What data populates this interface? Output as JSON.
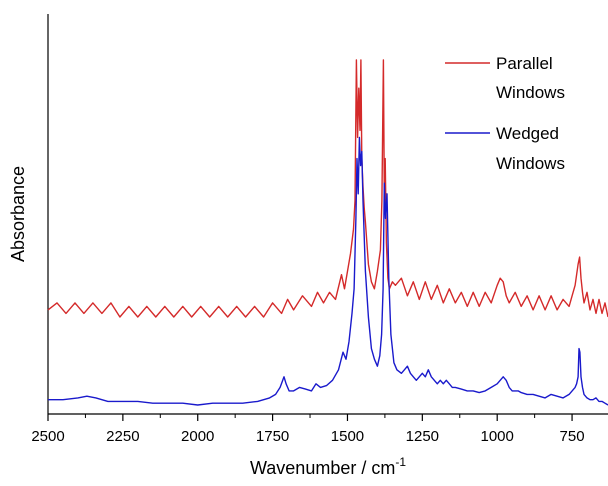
{
  "chart_data": {
    "type": "line",
    "xlabel": "Wavenumber / cm",
    "xlabel_sup": "-1",
    "ylabel": "Absorbance",
    "xlim": [
      2500,
      630
    ],
    "ylim": [
      0,
      1
    ],
    "x_reversed": true,
    "grid": false,
    "legend_position": "top-right",
    "x_ticks": [
      2500,
      2250,
      2000,
      1750,
      1500,
      1250,
      1000,
      750
    ],
    "x_tick_labels": [
      "2500",
      "2250",
      "2000",
      "1750",
      "1500",
      "1250",
      "1000",
      "750"
    ],
    "series": [
      {
        "name": "Parallel Windows",
        "legend_lines": [
          "Parallel",
          "Windows"
        ],
        "color": "#d42a2a",
        "x": [
          2500,
          2470,
          2440,
          2410,
          2380,
          2350,
          2320,
          2290,
          2260,
          2230,
          2200,
          2170,
          2140,
          2110,
          2080,
          2050,
          2020,
          1990,
          1960,
          1930,
          1900,
          1870,
          1840,
          1810,
          1780,
          1750,
          1720,
          1700,
          1680,
          1650,
          1620,
          1600,
          1580,
          1560,
          1540,
          1520,
          1510,
          1500,
          1490,
          1480,
          1475,
          1470,
          1466,
          1462,
          1458,
          1455,
          1452,
          1448,
          1444,
          1440,
          1430,
          1420,
          1410,
          1400,
          1390,
          1385,
          1380,
          1377,
          1374,
          1370,
          1365,
          1360,
          1350,
          1340,
          1320,
          1300,
          1280,
          1260,
          1240,
          1220,
          1200,
          1180,
          1160,
          1140,
          1120,
          1100,
          1080,
          1060,
          1040,
          1020,
          1000,
          990,
          980,
          970,
          960,
          940,
          920,
          900,
          880,
          860,
          840,
          820,
          800,
          780,
          760,
          750,
          740,
          730,
          725,
          720,
          715,
          710,
          700,
          690,
          680,
          670,
          660,
          650,
          640,
          630
        ],
        "y": [
          0.29,
          0.31,
          0.28,
          0.31,
          0.28,
          0.31,
          0.28,
          0.31,
          0.27,
          0.3,
          0.27,
          0.3,
          0.27,
          0.3,
          0.27,
          0.3,
          0.27,
          0.3,
          0.27,
          0.3,
          0.27,
          0.3,
          0.27,
          0.3,
          0.27,
          0.31,
          0.28,
          0.32,
          0.29,
          0.33,
          0.3,
          0.34,
          0.31,
          0.34,
          0.32,
          0.39,
          0.35,
          0.4,
          0.45,
          0.52,
          0.6,
          1.0,
          0.78,
          0.92,
          0.8,
          1.0,
          0.72,
          0.64,
          0.58,
          0.54,
          0.42,
          0.37,
          0.35,
          0.4,
          0.46,
          0.6,
          1.0,
          0.62,
          0.72,
          0.48,
          0.38,
          0.35,
          0.37,
          0.36,
          0.38,
          0.33,
          0.37,
          0.32,
          0.37,
          0.32,
          0.36,
          0.31,
          0.35,
          0.31,
          0.34,
          0.3,
          0.34,
          0.3,
          0.34,
          0.31,
          0.36,
          0.38,
          0.37,
          0.33,
          0.31,
          0.34,
          0.3,
          0.33,
          0.29,
          0.33,
          0.29,
          0.33,
          0.29,
          0.32,
          0.3,
          0.33,
          0.36,
          0.42,
          0.44,
          0.38,
          0.34,
          0.31,
          0.34,
          0.29,
          0.32,
          0.28,
          0.32,
          0.28,
          0.31,
          0.27
        ]
      },
      {
        "name": "Wedged Windows",
        "legend_lines": [
          "Wedged",
          "Windows"
        ],
        "color": "#1a1acc",
        "x": [
          2500,
          2450,
          2400,
          2370,
          2340,
          2300,
          2250,
          2200,
          2150,
          2100,
          2050,
          2000,
          1950,
          1900,
          1850,
          1800,
          1760,
          1740,
          1725,
          1712,
          1705,
          1695,
          1680,
          1660,
          1640,
          1620,
          1605,
          1590,
          1570,
          1550,
          1530,
          1515,
          1505,
          1495,
          1485,
          1478,
          1472,
          1468,
          1464,
          1460,
          1456,
          1452,
          1448,
          1444,
          1440,
          1430,
          1420,
          1410,
          1400,
          1392,
          1386,
          1381,
          1377,
          1373,
          1368,
          1362,
          1355,
          1345,
          1335,
          1320,
          1310,
          1300,
          1290,
          1280,
          1270,
          1260,
          1250,
          1240,
          1230,
          1220,
          1210,
          1200,
          1190,
          1180,
          1170,
          1160,
          1150,
          1140,
          1120,
          1100,
          1080,
          1060,
          1040,
          1020,
          1000,
          990,
          980,
          970,
          960,
          950,
          940,
          930,
          920,
          900,
          880,
          860,
          840,
          820,
          800,
          780,
          760,
          750,
          740,
          735,
          730,
          727,
          724,
          720,
          715,
          710,
          700,
          690,
          680,
          670,
          660,
          650,
          640,
          630
        ],
        "y": [
          0.035,
          0.035,
          0.04,
          0.045,
          0.04,
          0.03,
          0.03,
          0.03,
          0.025,
          0.025,
          0.025,
          0.02,
          0.025,
          0.025,
          0.025,
          0.03,
          0.04,
          0.05,
          0.07,
          0.1,
          0.08,
          0.06,
          0.06,
          0.07,
          0.065,
          0.06,
          0.08,
          0.07,
          0.075,
          0.09,
          0.12,
          0.17,
          0.15,
          0.2,
          0.28,
          0.35,
          0.55,
          0.72,
          0.62,
          0.78,
          0.7,
          0.74,
          0.6,
          0.5,
          0.4,
          0.27,
          0.18,
          0.15,
          0.13,
          0.16,
          0.22,
          0.35,
          0.65,
          0.55,
          0.62,
          0.38,
          0.22,
          0.14,
          0.12,
          0.11,
          0.12,
          0.13,
          0.11,
          0.1,
          0.09,
          0.1,
          0.11,
          0.1,
          0.12,
          0.1,
          0.09,
          0.08,
          0.09,
          0.08,
          0.09,
          0.08,
          0.07,
          0.07,
          0.065,
          0.06,
          0.06,
          0.055,
          0.06,
          0.07,
          0.08,
          0.09,
          0.1,
          0.09,
          0.07,
          0.06,
          0.06,
          0.06,
          0.055,
          0.05,
          0.05,
          0.045,
          0.04,
          0.05,
          0.045,
          0.04,
          0.05,
          0.06,
          0.07,
          0.08,
          0.1,
          0.18,
          0.17,
          0.1,
          0.07,
          0.05,
          0.04,
          0.035,
          0.035,
          0.04,
          0.03,
          0.03,
          0.025,
          0.02
        ]
      }
    ]
  }
}
